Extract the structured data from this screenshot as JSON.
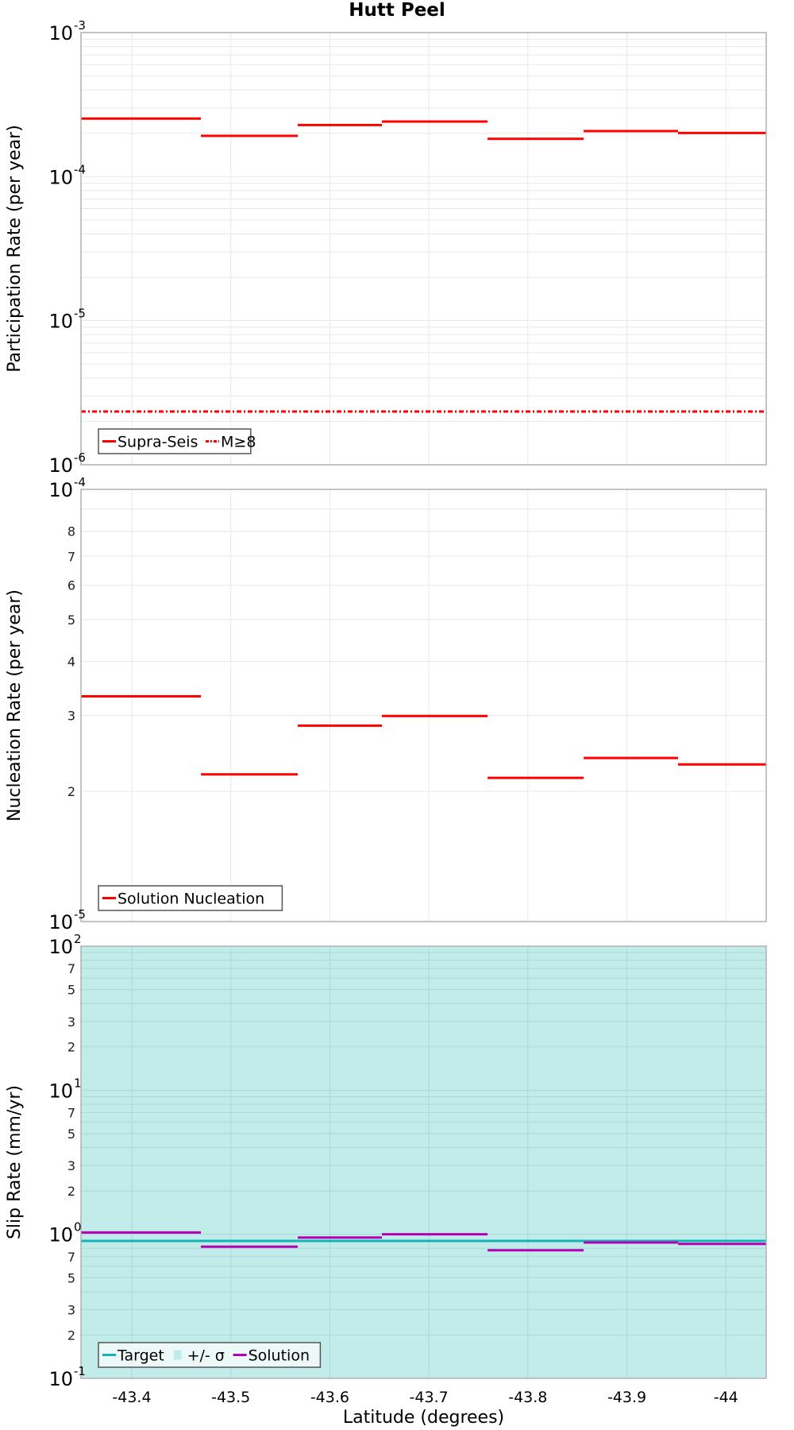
{
  "figure": {
    "title": "Hutt Peel",
    "xlabel": "Latitude (degrees)"
  },
  "colors": {
    "supra_seis": "#ff0000",
    "m8": "#ff0000",
    "nucleation": "#ff0000",
    "target": "#14b4b4",
    "sigma_band": "#c2ecea",
    "solution": "#b400b4",
    "frame": "#b0b0b0",
    "grid": "#e8e8e8"
  },
  "chart_data": [
    {
      "type": "line",
      "style": "step",
      "panel": "participation",
      "title": "Hutt Peel",
      "xlabel": "",
      "ylabel": "Participation Rate (per year)",
      "yscale": "log",
      "ylim": [
        1e-06,
        0.001
      ],
      "xlim": [
        -43.3487,
        -44.0407
      ],
      "x_ticks": [
        -43.4,
        -43.5,
        -43.6,
        -43.7,
        -43.8,
        -43.9,
        -44
      ],
      "y_tick_labels": [
        {
          "base": "10",
          "exp": "-3"
        },
        {
          "base": "10",
          "exp": "-4"
        },
        {
          "base": "10",
          "exp": "-5"
        },
        {
          "base": "10",
          "exp": "-6"
        }
      ],
      "grid": true,
      "legend": {
        "position": "lower-left",
        "entries": [
          "Supra-Seis",
          "M≥8"
        ]
      },
      "series": [
        {
          "name": "Supra-Seis",
          "style": "solid",
          "segments": [
            {
              "x0": -43.3487,
              "x1": -43.4698,
              "y": 0.000253
            },
            {
              "x0": -43.4698,
              "x1": -43.5676,
              "y": 0.000192
            },
            {
              "x0": -43.5676,
              "x1": -43.6526,
              "y": 0.000228
            },
            {
              "x0": -43.6526,
              "x1": -43.7593,
              "y": 0.000241
            },
            {
              "x0": -43.7593,
              "x1": -43.8563,
              "y": 0.000183
            },
            {
              "x0": -43.8563,
              "x1": -43.9517,
              "y": 0.000207
            },
            {
              "x0": -43.9517,
              "x1": -44.0407,
              "y": 0.000201
            }
          ]
        },
        {
          "name": "M≥8",
          "style": "dashdot",
          "segments": [
            {
              "x0": -43.3487,
              "x1": -44.0407,
              "y": 2.34e-06
            }
          ]
        }
      ]
    },
    {
      "type": "line",
      "style": "step",
      "panel": "nucleation",
      "xlabel": "",
      "ylabel": "Nucleation Rate (per year)",
      "yscale": "log",
      "ylim": [
        1e-05,
        0.0001
      ],
      "xlim": [
        -43.3487,
        -44.0407
      ],
      "x_ticks": [
        -43.4,
        -43.5,
        -43.6,
        -43.7,
        -43.8,
        -43.9,
        -44
      ],
      "y_tick_labels": [
        {
          "base": "10",
          "exp": "-4"
        },
        {
          "base": "10",
          "exp": "-5"
        }
      ],
      "y_minor_labels": [
        "8",
        "7",
        "6",
        "5",
        "4",
        "3",
        "2"
      ],
      "grid": true,
      "legend": {
        "position": "lower-left",
        "entries": [
          "Solution Nucleation"
        ]
      },
      "series": [
        {
          "name": "Solution Nucleation",
          "style": "solid",
          "segments": [
            {
              "x0": -43.3487,
              "x1": -43.4698,
              "y": 3.32e-05
            },
            {
              "x0": -43.4698,
              "x1": -43.5676,
              "y": 2.19e-05
            },
            {
              "x0": -43.5676,
              "x1": -43.6526,
              "y": 2.84e-05
            },
            {
              "x0": -43.6526,
              "x1": -43.7593,
              "y": 2.99e-05
            },
            {
              "x0": -43.7593,
              "x1": -43.8563,
              "y": 2.15e-05
            },
            {
              "x0": -43.8563,
              "x1": -43.9517,
              "y": 2.39e-05
            },
            {
              "x0": -43.9517,
              "x1": -44.0407,
              "y": 2.31e-05
            }
          ]
        }
      ]
    },
    {
      "type": "line",
      "style": "step",
      "panel": "slip",
      "xlabel": "Latitude (degrees)",
      "ylabel": "Slip Rate (mm/yr)",
      "yscale": "log",
      "ylim": [
        0.1,
        100
      ],
      "xlim": [
        -43.3487,
        -44.0407
      ],
      "x_ticks": [
        -43.4,
        -43.5,
        -43.6,
        -43.7,
        -43.8,
        -43.9,
        -44
      ],
      "x_tick_labels": [
        "-43.4",
        "-43.5",
        "-43.6",
        "-43.7",
        "-43.8",
        "-43.9",
        "-44"
      ],
      "y_tick_labels": [
        {
          "base": "10",
          "exp": "2"
        },
        {
          "base": "10",
          "exp": "1"
        },
        {
          "base": "10",
          "exp": "0"
        },
        {
          "base": "10",
          "exp": "-1"
        }
      ],
      "y_minor_labels": [
        "7",
        "5",
        "3",
        "2"
      ],
      "grid": true,
      "legend": {
        "position": "lower-left",
        "entries": [
          "Target",
          "+/- σ",
          "Solution"
        ]
      },
      "series": [
        {
          "name": "+/- σ",
          "style": "band",
          "lower": 0.1,
          "upper": 100
        },
        {
          "name": "Target",
          "style": "solid",
          "segments": [
            {
              "x0": -43.3487,
              "x1": -44.0407,
              "y": 0.9
            }
          ]
        },
        {
          "name": "Solution",
          "style": "solid",
          "segments": [
            {
              "x0": -43.3487,
              "x1": -43.4698,
              "y": 1.03
            },
            {
              "x0": -43.4698,
              "x1": -43.5676,
              "y": 0.82
            },
            {
              "x0": -43.5676,
              "x1": -43.6526,
              "y": 0.95
            },
            {
              "x0": -43.6526,
              "x1": -43.7593,
              "y": 1.0
            },
            {
              "x0": -43.7593,
              "x1": -43.8563,
              "y": 0.775
            },
            {
              "x0": -43.8563,
              "x1": -43.9517,
              "y": 0.877
            },
            {
              "x0": -43.9517,
              "x1": -44.0407,
              "y": 0.858
            }
          ]
        }
      ]
    }
  ]
}
